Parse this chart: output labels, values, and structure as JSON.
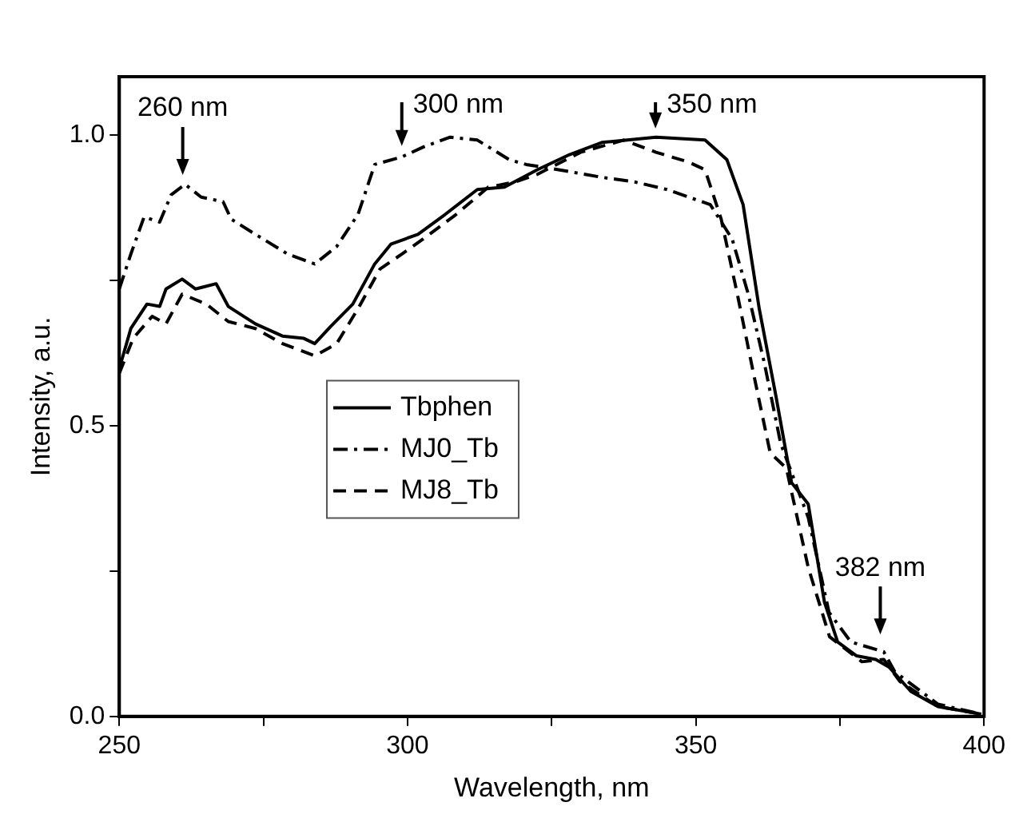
{
  "chart_data": {
    "type": "line",
    "xlabel": "Wavelength, nm",
    "ylabel": "Intensity, a.u.",
    "xlim": [
      250,
      400
    ],
    "ylim": [
      0,
      1.1
    ],
    "xticks": [
      250,
      {
        "value": 275,
        "label": null
      },
      300,
      {
        "value": 325,
        "label": null
      },
      350,
      {
        "value": 375,
        "label": null
      },
      400
    ],
    "yticks": [
      {
        "value": 0,
        "label": "0.0"
      },
      {
        "value": 0.25,
        "label": null
      },
      {
        "value": 0.5,
        "label": "0.5"
      },
      {
        "value": 0.75,
        "label": null
      },
      {
        "value": 1,
        "label": "1.0"
      }
    ],
    "grid": false,
    "legend": "left",
    "marker": "none",
    "annotations": [
      {
        "text": "260 nm",
        "x": 261,
        "y": 0.92
      },
      {
        "text": "300 nm",
        "x": 299,
        "y": 0.97
      },
      {
        "text": "350 nm",
        "x": 343,
        "y": 1.0
      },
      {
        "text": "382 nm",
        "x": 382,
        "y": 0.13
      }
    ],
    "series": [
      {
        "name": "Tbphen",
        "color": "#000000",
        "line_style": "solid",
        "x": [
          250,
          252,
          254.8,
          257,
          258.1,
          260.9,
          263.2,
          266.8,
          268.9,
          273.6,
          278.3,
          282,
          283.9,
          286.7,
          290.5,
          294.3,
          297.1,
          301.8,
          306.5,
          312.1,
          316.8,
          322.5,
          328.1,
          333.7,
          343.1,
          351.6,
          355.4,
          358.2,
          361,
          363.8,
          366.6,
          369.5,
          372.3,
          374.6,
          377.9,
          381.2,
          383.5,
          387.3,
          392,
          399.5
        ],
        "values": [
          0.598,
          0.667,
          0.709,
          0.705,
          0.735,
          0.752,
          0.735,
          0.744,
          0.705,
          0.675,
          0.654,
          0.65,
          0.641,
          0.671,
          0.709,
          0.778,
          0.812,
          0.829,
          0.863,
          0.906,
          0.91,
          0.94,
          0.966,
          0.987,
          0.996,
          0.991,
          0.957,
          0.88,
          0.701,
          0.556,
          0.402,
          0.365,
          0.197,
          0.128,
          0.104,
          0.098,
          0.085,
          0.043,
          0.017,
          0.004
        ]
      },
      {
        "name": "MJ0_Tb",
        "color": "#000000",
        "line_style": "dashdot",
        "x": [
          250,
          252,
          254.3,
          257,
          259,
          261.4,
          264.2,
          268,
          269.4,
          273.6,
          279.2,
          283.9,
          287.7,
          291.4,
          294.3,
          299,
          302.7,
          307.4,
          312.1,
          317.7,
          320.6,
          326.2,
          333.7,
          339.4,
          345,
          352.5,
          356.3,
          359.1,
          361.9,
          364.7,
          369.5,
          373.1,
          376.9,
          382.6,
          384.5,
          392,
          399.5
        ],
        "values": [
          0.735,
          0.795,
          0.859,
          0.85,
          0.897,
          0.915,
          0.893,
          0.885,
          0.855,
          0.829,
          0.795,
          0.778,
          0.808,
          0.863,
          0.949,
          0.962,
          0.979,
          0.996,
          0.991,
          0.957,
          0.949,
          0.94,
          0.927,
          0.919,
          0.906,
          0.88,
          0.821,
          0.726,
          0.607,
          0.47,
          0.342,
          0.179,
          0.128,
          0.111,
          0.077,
          0.021,
          0.004
        ]
      },
      {
        "name": "MJ8_Tb",
        "color": "#000000",
        "line_style": "dashed",
        "x": [
          250,
          252.4,
          255.7,
          258.1,
          260.9,
          265.1,
          268.9,
          273.6,
          278.3,
          283.9,
          287.7,
          291.4,
          295.2,
          299,
          302.7,
          308.4,
          314,
          318.7,
          322.5,
          330,
          337.5,
          343.1,
          348.8,
          351.6,
          354.4,
          357.2,
          360,
          362.9,
          365.7,
          369.5,
          373.2,
          378.8,
          382.6,
          385.4,
          392,
          399.5
        ],
        "values": [
          0.59,
          0.65,
          0.688,
          0.675,
          0.726,
          0.709,
          0.679,
          0.667,
          0.641,
          0.62,
          0.641,
          0.701,
          0.769,
          0.795,
          0.821,
          0.863,
          0.91,
          0.919,
          0.932,
          0.97,
          0.991,
          0.97,
          0.953,
          0.94,
          0.855,
          0.726,
          0.59,
          0.453,
          0.427,
          0.256,
          0.137,
          0.094,
          0.098,
          0.06,
          0.017,
          0.004
        ]
      }
    ]
  }
}
